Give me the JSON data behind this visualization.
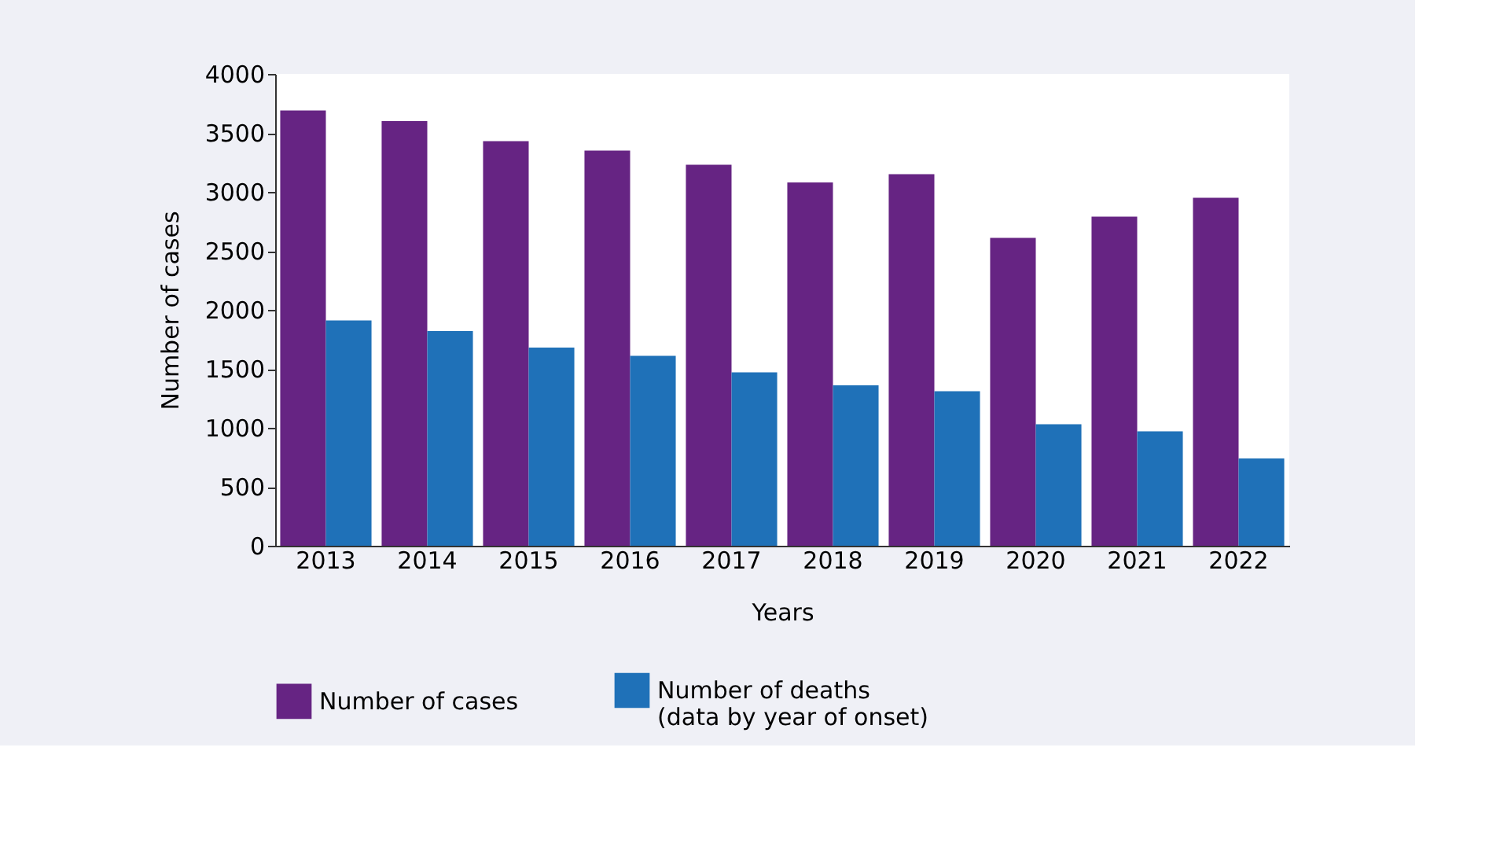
{
  "chart_data": {
    "type": "bar",
    "xlabel": "Years",
    "ylabel": "Number of cases",
    "categories": [
      "2013",
      "2014",
      "2015",
      "2016",
      "2017",
      "2018",
      "2019",
      "2020",
      "2021",
      "2022"
    ],
    "series": [
      {
        "name": "Number of cases",
        "color": "#662483",
        "values": [
          3690,
          3600,
          3430,
          3350,
          3230,
          3080,
          3150,
          2610,
          2790,
          2950
        ]
      },
      {
        "name": "Number of deaths\n(data by year of onset)",
        "color": "#1f71b8",
        "values": [
          1910,
          1820,
          1680,
          1610,
          1470,
          1360,
          1310,
          1030,
          970,
          740
        ]
      }
    ],
    "ylim": [
      0,
      4000
    ],
    "yticks": [
      0,
      500,
      1000,
      1500,
      2000,
      2500,
      3000,
      3500,
      4000
    ],
    "grid": false,
    "legend": "bottom"
  }
}
